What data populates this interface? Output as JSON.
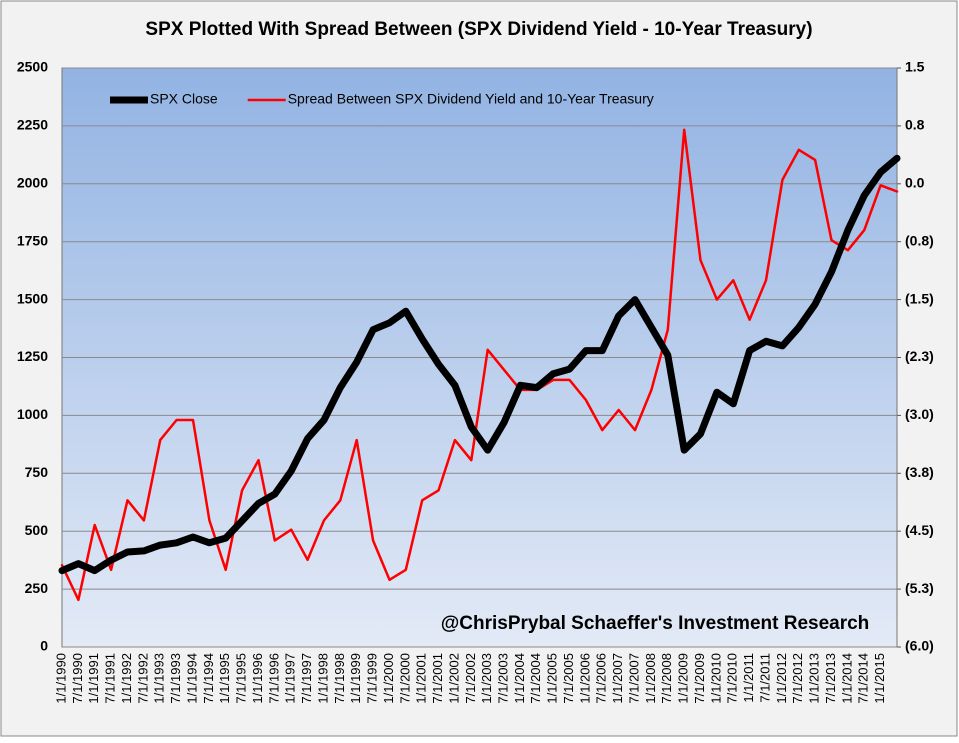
{
  "chart_data": {
    "type": "line",
    "title": "SPX Plotted With Spread Between (SPX Dividend Yield - 10-Year Treasury)",
    "annotation": "@ChrisPrybal   Schaeffer's Investment Research",
    "categories": [
      "1/1/1990",
      "7/1/1990",
      "1/1/1991",
      "7/1/1991",
      "1/1/1992",
      "7/1/1992",
      "1/1/1993",
      "7/1/1993",
      "1/1/1994",
      "7/1/1994",
      "1/1/1995",
      "7/1/1995",
      "1/1/1996",
      "7/1/1996",
      "1/1/1997",
      "7/1/1997",
      "1/1/1998",
      "7/1/1998",
      "1/1/1999",
      "7/1/1999",
      "1/1/2000",
      "7/1/2000",
      "1/1/2001",
      "7/1/2001",
      "1/1/2002",
      "7/1/2002",
      "1/1/2003",
      "7/1/2003",
      "1/1/2004",
      "7/1/2004",
      "1/1/2005",
      "7/1/2005",
      "1/1/2006",
      "7/1/2006",
      "1/1/2007",
      "7/1/2007",
      "1/1/2008",
      "7/1/2008",
      "1/1/2009",
      "7/1/2009",
      "1/1/2010",
      "7/1/2010",
      "1/1/2011",
      "7/1/2011",
      "1/1/2012",
      "7/1/2012",
      "1/1/2013",
      "7/1/2013",
      "1/1/2014",
      "7/1/2014",
      "1/1/2015",
      null
    ],
    "series": [
      {
        "name": "SPX Close",
        "color": "#000000",
        "axis": "y",
        "values": [
          330,
          360,
          330,
          375,
          410,
          415,
          440,
          450,
          475,
          450,
          470,
          545,
          620,
          660,
          760,
          900,
          980,
          1120,
          1230,
          1370,
          1400,
          1450,
          1330,
          1220,
          1130,
          950,
          850,
          970,
          1130,
          1120,
          1180,
          1200,
          1280,
          1280,
          1430,
          1500,
          1380,
          1260,
          850,
          920,
          1100,
          1050,
          1280,
          1320,
          1300,
          1380,
          1480,
          1620,
          1800,
          1950,
          2050,
          2110
        ]
      },
      {
        "name": "Spread Between SPX Dividend Yield and 10-Year Treasury",
        "color": "#ff0000",
        "axis": "y2",
        "values": [
          -4.94,
          -5.39,
          -4.42,
          -5.0,
          -4.1,
          -4.36,
          -3.32,
          -3.06,
          -3.06,
          -4.36,
          -5.0,
          -3.97,
          -3.58,
          -4.62,
          -4.48,
          -4.87,
          -4.36,
          -4.1,
          -3.32,
          -4.62,
          -5.13,
          -5.0,
          -4.1,
          -3.97,
          -3.32,
          -3.58,
          -2.15,
          -2.41,
          -2.67,
          -2.67,
          -2.54,
          -2.54,
          -2.8,
          -3.19,
          -2.93,
          -3.19,
          -2.67,
          -1.89,
          0.7,
          -0.99,
          -1.5,
          -1.25,
          -1.76,
          -1.25,
          0.05,
          0.44,
          0.31,
          -0.73,
          -0.86,
          -0.6,
          -0.02,
          -0.1
        ]
      }
    ],
    "ylim": [
      0,
      2500
    ],
    "yticks": [
      0,
      250,
      500,
      750,
      1000,
      1250,
      1500,
      1750,
      2000,
      2250,
      2500
    ],
    "y2lim": [
      -6,
      1.5
    ],
    "y2ticks": [
      {
        "value": -6,
        "label": "(6.0)"
      },
      {
        "value": -5.25,
        "label": "(5.3)"
      },
      {
        "value": -4.5,
        "label": "(4.5)"
      },
      {
        "value": -3.75,
        "label": "(3.8)"
      },
      {
        "value": -3,
        "label": "(3.0)"
      },
      {
        "value": -2.25,
        "label": "(2.3)"
      },
      {
        "value": -1.5,
        "label": "(1.5)"
      },
      {
        "value": -0.75,
        "label": "(0.8)"
      },
      {
        "value": 0,
        "label": "0.0"
      },
      {
        "value": 0.75,
        "label": "0.8"
      },
      1.5
    ],
    "grid": true,
    "legend": "top-left"
  }
}
